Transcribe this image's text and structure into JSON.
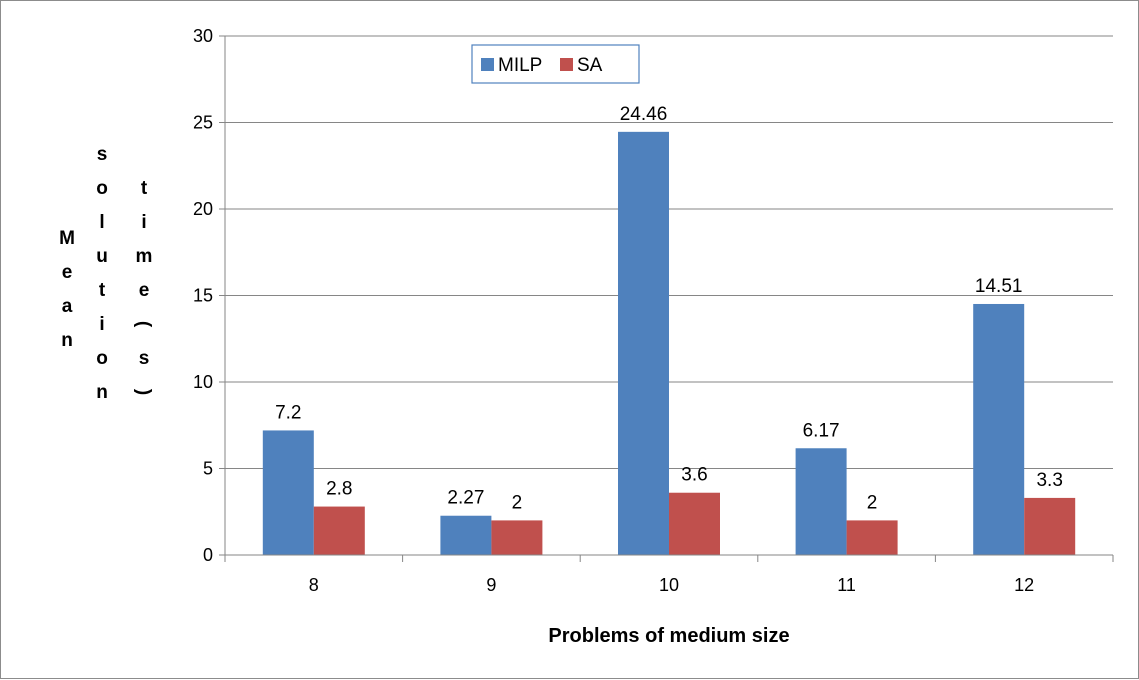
{
  "chart_data": {
    "type": "bar",
    "categories": [
      "8",
      "9",
      "10",
      "11",
      "12"
    ],
    "series": [
      {
        "name": "MILP",
        "color": "#4f81bd",
        "values": [
          7.2,
          2.27,
          24.46,
          6.17,
          14.51
        ],
        "labels": [
          "7.2",
          "2.27",
          "24.46",
          "6.17",
          "14.51"
        ]
      },
      {
        "name": "SA",
        "color": "#c0504d",
        "values": [
          2.8,
          2,
          3.6,
          2,
          3.3
        ],
        "labels": [
          "2.8",
          "2",
          "3.6",
          "2",
          "3.3"
        ]
      }
    ],
    "title": "",
    "xlabel": "Problems of medium size",
    "ylabel": "Mean solution time (s)",
    "ylabel_columns": [
      "Mean",
      "solution",
      "time(s)"
    ],
    "ylim": [
      0,
      30
    ],
    "yticks": [
      0,
      5,
      10,
      15,
      20,
      25,
      30
    ],
    "grid": true,
    "legend_position": "top-center"
  }
}
